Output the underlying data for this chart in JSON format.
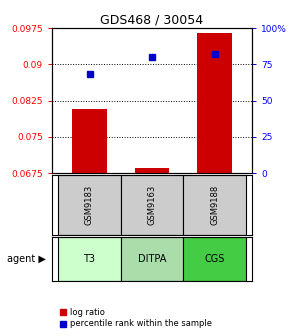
{
  "title": "GDS468 / 30054",
  "samples": [
    "GSM9183",
    "GSM9163",
    "GSM9188"
  ],
  "agents": [
    "T3",
    "DITPA",
    "CGS"
  ],
  "x_positions": [
    1,
    2,
    3
  ],
  "log_ratio_values": [
    0.0808,
    0.0685,
    0.0965
  ],
  "percentile_values": [
    68,
    80,
    82
  ],
  "ylim_left": [
    0.0675,
    0.0975
  ],
  "ylim_right": [
    0,
    100
  ],
  "yticks_left": [
    0.0675,
    0.075,
    0.0825,
    0.09,
    0.0975
  ],
  "yticks_right": [
    0,
    25,
    50,
    75,
    100
  ],
  "ytick_labels_left": [
    "0.0675",
    "0.075",
    "0.0825",
    "0.09",
    "0.0975"
  ],
  "ytick_labels_right": [
    "0",
    "25",
    "50",
    "75",
    "100%"
  ],
  "bar_color": "#cc0000",
  "dot_color": "#0000cc",
  "bar_width": 0.55,
  "agent_colors": [
    "#ccffcc",
    "#aaddaa",
    "#44cc44"
  ],
  "gsm_bg_color": "#cccccc",
  "bar_bottom": 0.0675,
  "legend_bar_label": "log ratio",
  "legend_dot_label": "percentile rank within the sample"
}
